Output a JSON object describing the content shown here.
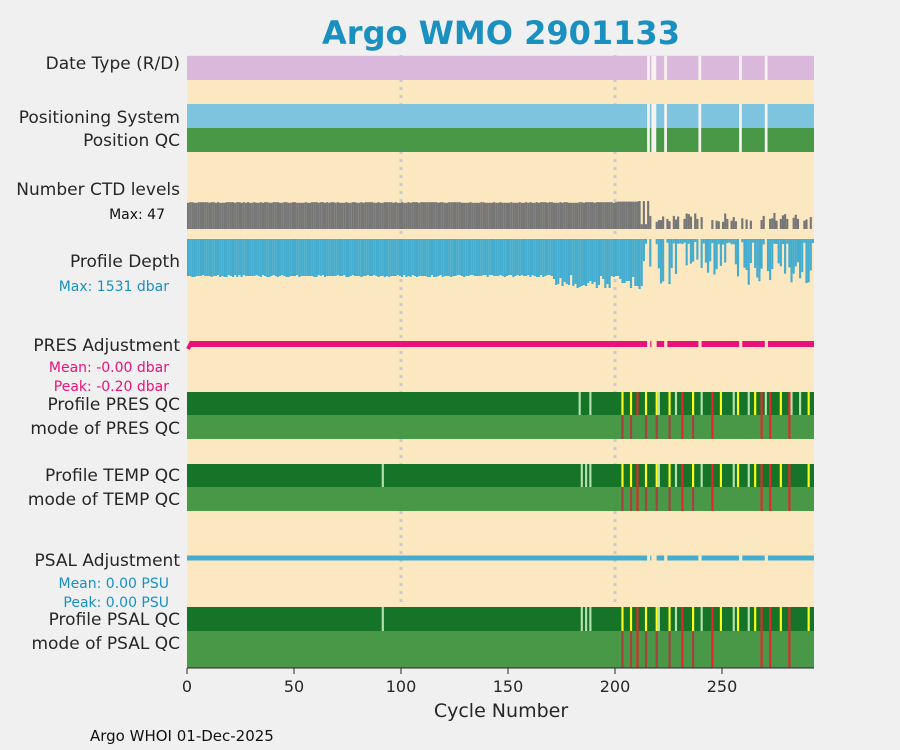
{
  "chart_data": {
    "type": "bar",
    "title": "Argo WMO 2901133",
    "xlabel": "Cycle Number",
    "xlim": [
      0,
      293
    ],
    "xticks": [
      "0",
      "50",
      "100",
      "150",
      "200",
      "250"
    ],
    "gridlines_x": [
      100,
      200
    ],
    "footer": "Argo WHOI 01-Dec-2025",
    "rows": {
      "date_type": "Date Type (R/D)",
      "positioning": "Positioning System",
      "position_qc": "Position QC",
      "n_levels": "Number CTD levels",
      "profile_depth": "Profile Depth",
      "pres_adj": "PRES Adjustment",
      "prof_pres_qc": "Profile PRES QC",
      "mode_pres_qc": "mode of PRES QC",
      "prof_temp_qc": "Profile TEMP QC",
      "mode_temp_qc": "mode of TEMP QC",
      "psal_adj": "PSAL Adjustment",
      "prof_psal_qc": "Profile PSAL QC",
      "mode_psal_qc": "mode of PSAL QC"
    },
    "annotations": {
      "levels_max": "Max: 47",
      "depth_max": "Max: 1531 dbar",
      "pres_mean": "Mean: -0.00 dbar",
      "pres_peak": "Peak: -0.20 dbar",
      "psal_mean": "Mean: 0.00 PSU",
      "psal_peak": "Peak: 0.00 PSU"
    },
    "missing_cycles": [
      215,
      217,
      218,
      223,
      239,
      258,
      270
    ],
    "n_levels_max": 47,
    "depth_max_dbar": 1531,
    "pres_adjustment_dbar": {
      "mean": -0.0,
      "peak": -0.2
    },
    "psal_adjustment_psu": {
      "mean": 0.0,
      "peak": 0.0
    },
    "qc_flags": {
      "prof_pres_a_cycles": [
        183,
        188,
        220,
        228,
        240,
        255,
        262,
        270,
        282,
        286
      ],
      "prof_pres_b_cycles": [
        203,
        207,
        214,
        219,
        225,
        236,
        249,
        257,
        265,
        277,
        290
      ],
      "prof_pres_c_cycles": [
        210,
        231,
        245,
        268,
        272,
        281
      ],
      "mode_pres_bad_cycles": [
        203,
        231,
        245,
        268,
        272,
        281
      ],
      "prof_temp_a_cycles": [
        91,
        184,
        186,
        188,
        220,
        228,
        240,
        255,
        262
      ],
      "prof_temp_b_cycles": [
        203,
        207,
        214,
        219,
        225,
        236,
        249,
        257,
        265,
        277,
        290
      ],
      "prof_temp_c_cycles": [
        210,
        231,
        245,
        268,
        272,
        281
      ],
      "prof_psal_a_cycles": [
        91,
        184,
        186,
        188,
        220,
        228,
        240,
        255,
        262
      ],
      "prof_psal_b_cycles": [
        203,
        207,
        214,
        219,
        225,
        236,
        249,
        257,
        265,
        277,
        290
      ],
      "prof_psal_c_cycles": [
        210,
        231,
        245,
        268,
        272,
        281
      ]
    },
    "colors": {
      "background": "#fce8c0",
      "figure": "#f0f0f0",
      "title": "#1a90c0",
      "date_type": "#dab8dc",
      "positioning": "#7ec4de",
      "qc_good_profile": "#167429",
      "qc_good_mode": "#489848",
      "qc_light": "#b6e1b0",
      "qc_yellow": "#ffff1a",
      "qc_red": "#e6262a",
      "qc_darkred": "#a84040",
      "n_levels": "#767676",
      "depth": "#44adcf",
      "pres_adj": "#e8137a",
      "psal_adj": "#44adcf",
      "grid": "#c8c8d6"
    }
  }
}
